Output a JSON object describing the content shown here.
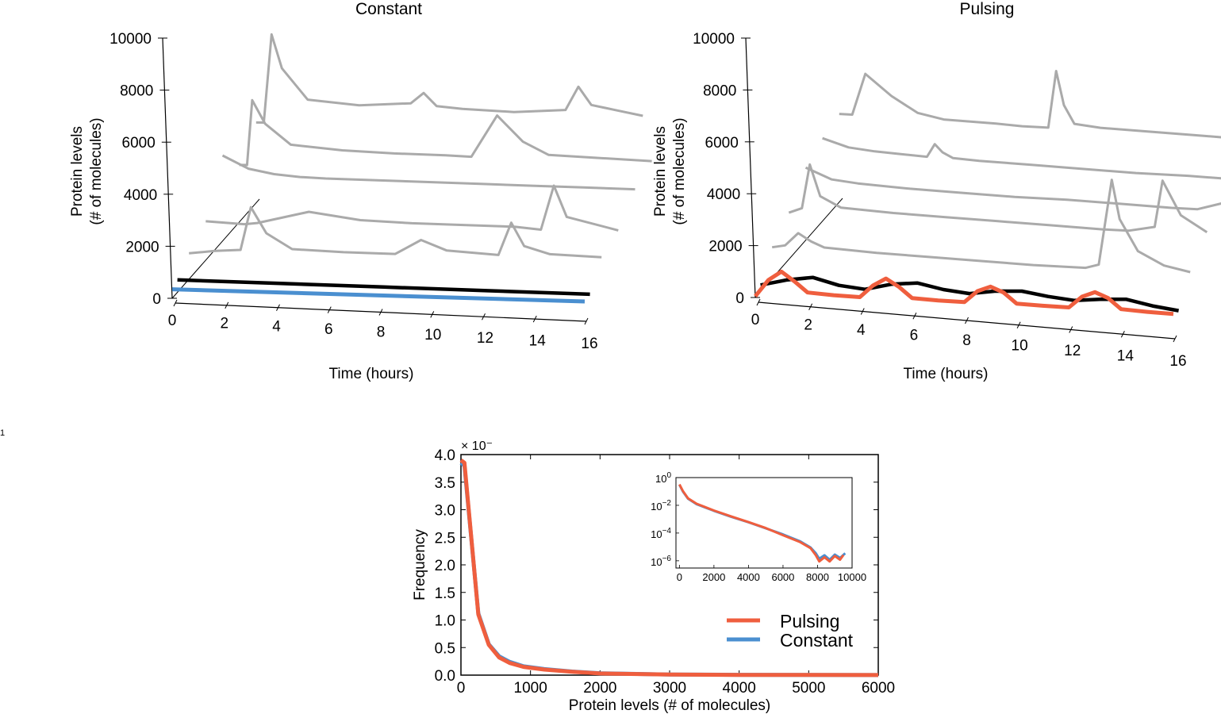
{
  "stray_mark": "1",
  "chart_data": [
    {
      "type": "line",
      "title": "Constant",
      "xlabel": "Time (hours)",
      "ylabel": [
        "Protein levels",
        "(# of molecules)"
      ],
      "xlim": [
        0,
        16
      ],
      "ylim": [
        0,
        10000
      ],
      "x_ticks": [
        0,
        2,
        4,
        6,
        8,
        10,
        12,
        14,
        16
      ],
      "y_ticks": [
        0,
        2000,
        4000,
        6000,
        8000,
        10000
      ],
      "colors": {
        "trace": "#aaaaaa",
        "mean": "#000000",
        "input": "#4a8fd0"
      },
      "input": {
        "name": "Constant",
        "x": [
          0,
          16
        ],
        "y": [
          350,
          30
        ]
      },
      "mean": {
        "x": [
          0,
          4,
          8,
          12,
          16
        ],
        "y": [
          480,
          380,
          280,
          180,
          80
        ]
      },
      "traces": [
        {
          "x": [
            0,
            1,
            2,
            2.4,
            3,
            4,
            6,
            8,
            9,
            10,
            12,
            12.5,
            13,
            14,
            16
          ],
          "y": [
            1000,
            1100,
            1150,
            2800,
            1800,
            1200,
            1100,
            1050,
            1600,
            1200,
            1050,
            2300,
            1400,
            1100,
            1000
          ]
        },
        {
          "x": [
            0,
            1.5,
            2,
            4,
            6,
            8,
            10,
            12,
            13,
            13.5,
            14,
            16
          ],
          "y": [
            1500,
            1400,
            1450,
            1900,
            1600,
            1500,
            1450,
            1400,
            1300,
            3000,
            1800,
            1300
          ]
        },
        {
          "x": [
            0,
            1,
            2,
            3,
            4,
            6,
            8,
            10,
            12,
            14,
            16
          ],
          "y": [
            3300,
            2800,
            2600,
            2500,
            2450,
            2400,
            2350,
            2300,
            2250,
            2200,
            2150
          ]
        },
        {
          "x": [
            0,
            0.3,
            0.5,
            1,
            2,
            4,
            6,
            8,
            9,
            10,
            11,
            12,
            14,
            16
          ],
          "y": [
            2200,
            2200,
            4700,
            3800,
            3000,
            2800,
            2700,
            2650,
            2600,
            4200,
            3200,
            2700,
            2600,
            2500
          ]
        },
        {
          "x": [
            0,
            0.3,
            0.6,
            1,
            2,
            4,
            6,
            6.5,
            7,
            8,
            10,
            12,
            12.5,
            13,
            14,
            15
          ],
          "y": [
            3100,
            3100,
            6500,
            5200,
            4000,
            3800,
            3900,
            4300,
            3800,
            3700,
            3600,
            3700,
            4600,
            3900,
            3700,
            3500
          ]
        }
      ]
    },
    {
      "type": "line",
      "title": "Pulsing",
      "xlabel": "Time (hours)",
      "ylabel": [
        "Protein levels",
        "(# of molecules)"
      ],
      "xlim": [
        0,
        16
      ],
      "ylim": [
        0,
        10000
      ],
      "x_ticks": [
        0,
        2,
        4,
        6,
        8,
        10,
        12,
        14,
        16
      ],
      "y_ticks": [
        0,
        2000,
        4000,
        6000,
        8000,
        10000
      ],
      "colors": {
        "trace": "#aaaaaa",
        "mean": "#000000",
        "input": "#ef5e3e"
      },
      "input": {
        "name": "Pulsing",
        "x": [
          0,
          0.5,
          1,
          1.5,
          2,
          3,
          4,
          4.5,
          5,
          5.5,
          6,
          7,
          8,
          8.5,
          9,
          9.5,
          10,
          11,
          12,
          12.5,
          13,
          13.5,
          14,
          15,
          16
        ],
        "y": [
          50,
          700,
          1050,
          700,
          300,
          250,
          230,
          700,
          1000,
          700,
          300,
          260,
          250,
          700,
          900,
          700,
          300,
          270,
          260,
          700,
          900,
          700,
          300,
          250,
          220
        ]
      },
      "mean": {
        "x": [
          0,
          1,
          2,
          3,
          4,
          5,
          6,
          7,
          8,
          9,
          10,
          11,
          12,
          13,
          14,
          15,
          16
        ],
        "y": [
          250,
          500,
          650,
          400,
          300,
          550,
          650,
          450,
          350,
          500,
          550,
          400,
          300,
          400,
          450,
          250,
          120
        ]
      },
      "traces": [
        {
          "x": [
            0,
            0.5,
            1,
            1.5,
            2,
            4,
            6,
            8,
            10,
            12,
            12.5,
            13,
            13.3,
            14,
            15,
            16
          ],
          "y": [
            1200,
            1300,
            1800,
            1500,
            1300,
            1200,
            1150,
            1100,
            1050,
            1050,
            1200,
            4500,
            3000,
            1800,
            1300,
            1100
          ]
        },
        {
          "x": [
            0,
            0.5,
            0.8,
            1.2,
            2,
            4,
            6,
            8,
            10,
            12,
            13,
            14,
            14.3,
            15,
            16
          ],
          "y": [
            1800,
            2000,
            3700,
            2500,
            2100,
            2000,
            1950,
            1900,
            1850,
            1800,
            1800,
            2000,
            3800,
            2500,
            1900
          ]
        },
        {
          "x": [
            0,
            1,
            2,
            4,
            6,
            8,
            10,
            12,
            14,
            15,
            16
          ],
          "y": [
            2800,
            2400,
            2300,
            2200,
            2150,
            2100,
            2100,
            2050,
            2000,
            2000,
            2300
          ]
        },
        {
          "x": [
            0,
            1,
            2,
            3,
            4,
            4.3,
            4.6,
            5,
            6,
            8,
            10,
            12,
            14,
            16
          ],
          "y": [
            3200,
            2900,
            2800,
            2750,
            2700,
            3200,
            2900,
            2700,
            2650,
            2600,
            2550,
            2500,
            2500,
            2450
          ]
        },
        {
          "x": [
            0,
            0.5,
            1,
            2,
            3,
            4,
            6,
            7,
            8,
            8.3,
            8.6,
            9,
            10,
            12,
            14,
            16
          ],
          "y": [
            3400,
            3400,
            5000,
            4200,
            3600,
            3400,
            3350,
            3300,
            3300,
            5500,
            4200,
            3500,
            3400,
            3350,
            3300,
            3250
          ]
        }
      ]
    },
    {
      "type": "line",
      "title": "",
      "xlabel": "Protein levels (# of molecules)",
      "ylabel": "Frequency",
      "xlim": [
        0,
        6000
      ],
      "ylim": [
        0,
        4.0
      ],
      "y_multiplier_label": "× 10⁻",
      "x_ticks": [
        0,
        1000,
        2000,
        3000,
        4000,
        5000,
        6000
      ],
      "y_ticks": [
        0.0,
        0.5,
        1.0,
        1.5,
        2.0,
        2.5,
        3.0,
        3.5,
        4.0
      ],
      "legend_position": "bottom-right",
      "series": [
        {
          "name": "Pulsing",
          "color": "#ef5e3e",
          "x": [
            0,
            50,
            250,
            400,
            550,
            700,
            900,
            1200,
            1600,
            2000,
            3000,
            4000,
            5000,
            6000
          ],
          "values": [
            3.9,
            3.85,
            1.1,
            0.55,
            0.32,
            0.22,
            0.15,
            0.1,
            0.06,
            0.03,
            0.01,
            0.005,
            0.003,
            0.002
          ]
        },
        {
          "name": "Constant",
          "color": "#4a8fd0",
          "x": [
            0,
            50,
            250,
            400,
            550,
            700,
            900,
            1200,
            1600,
            2000,
            3000,
            4000,
            5000,
            6000
          ],
          "values": [
            3.85,
            3.8,
            1.12,
            0.56,
            0.34,
            0.24,
            0.16,
            0.11,
            0.065,
            0.035,
            0.012,
            0.006,
            0.003,
            0.002
          ]
        }
      ],
      "inset": {
        "type": "line",
        "yscale": "log",
        "xlim": [
          -200,
          10000
        ],
        "ylim": [
          3e-07,
          1
        ],
        "x_ticks": [
          0,
          2000,
          4000,
          6000,
          8000,
          10000
        ],
        "y_ticks": [
          {
            "base": "10",
            "exp": "0",
            "value": 1
          },
          {
            "base": "10",
            "exp": "−2",
            "value": 0.01
          },
          {
            "base": "10",
            "exp": "−4",
            "value": 0.0001
          },
          {
            "base": "10",
            "exp": "−6",
            "value": 1e-06
          }
        ],
        "series": [
          {
            "name": "Constant",
            "color": "#4a8fd0",
            "x": [
              0,
              200,
              500,
              1000,
              2000,
              3000,
              4000,
              5000,
              6000,
              7000,
              7600,
              7900,
              8100,
              8400,
              8700,
              9000,
              9300,
              9600
            ],
            "values": [
              0.3,
              0.1,
              0.03,
              0.012,
              0.004,
              0.0015,
              0.0006,
              0.00022,
              8e-05,
              2.5e-05,
              9e-06,
              3.5e-06,
              1.4e-06,
              2.5e-06,
              1.2e-06,
              2.8e-06,
              1.6e-06,
              3.5e-06
            ]
          },
          {
            "name": "Pulsing",
            "color": "#ef5e3e",
            "x": [
              0,
              200,
              500,
              1000,
              2000,
              3000,
              4000,
              5000,
              6000,
              7000,
              7600,
              7900,
              8100,
              8400,
              8700,
              9000,
              9300,
              9500
            ],
            "values": [
              0.32,
              0.11,
              0.032,
              0.013,
              0.0042,
              0.0016,
              0.00062,
              0.00023,
              7e-05,
              2.2e-05,
              8e-06,
              2.5e-06,
              9e-07,
              1.8e-06,
              9e-07,
              2.2e-06,
              1.2e-06,
              2.6e-06
            ]
          }
        ]
      }
    }
  ]
}
